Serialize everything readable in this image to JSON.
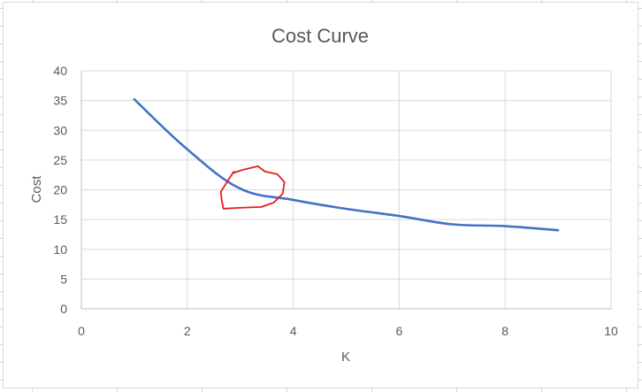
{
  "chart_data": {
    "type": "line",
    "title": "Cost Curve",
    "xlabel": "K",
    "ylabel": "Cost",
    "xlim": [
      0,
      10
    ],
    "ylim": [
      0,
      40
    ],
    "x_ticks": [
      "0",
      "2",
      "4",
      "6",
      "8",
      "10"
    ],
    "y_ticks": [
      "0",
      "5",
      "10",
      "15",
      "20",
      "25",
      "30",
      "35",
      "40"
    ],
    "grid": true,
    "legend": "none",
    "series": [
      {
        "x": [
          1,
          2,
          3,
          4,
          5,
          6,
          7,
          8,
          9
        ],
        "values": [
          35.2,
          26.8,
          20.2,
          18.3,
          16.8,
          15.6,
          14.2,
          13.9,
          13.2
        ],
        "color": "#4472C4"
      }
    ],
    "annotation": {
      "type": "hand-drawn-circle",
      "color": "#E02020",
      "center_x": 3.2,
      "center_y": 19.8
    }
  }
}
